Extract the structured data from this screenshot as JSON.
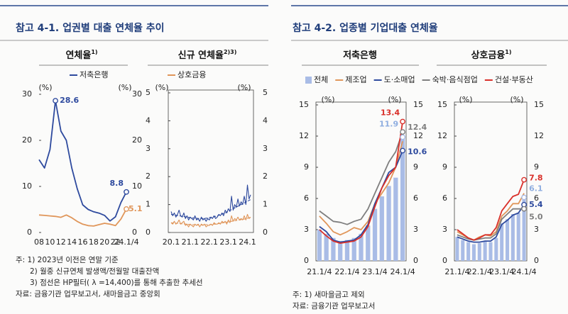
{
  "header": {
    "left_title": "참고 4-1. 업권별 대출 연체율 추이",
    "right_title": "참고 4-2. 업종별 기업대출 연체율"
  },
  "chart_data": [
    {
      "type": "line",
      "title": "연체율",
      "title_note": "1)",
      "y_unit": "(%)",
      "categories": [
        "08",
        null,
        "10",
        null,
        "12",
        null,
        "14",
        null,
        "16",
        null,
        "18",
        null,
        "20",
        null,
        "22",
        null,
        "24.1/4"
      ],
      "ylim": [
        0,
        30
      ],
      "yticks": [
        0,
        10,
        20,
        30
      ],
      "frame": false,
      "legend_series": [
        0
      ],
      "series": [
        {
          "name": "저축은행",
          "color": "#2e4a9e",
          "values": [
            15.8,
            14.0,
            18.0,
            28.6,
            22.0,
            20.0,
            14.0,
            9.5,
            6.0,
            5.0,
            4.5,
            4.2,
            3.7,
            2.5,
            3.4,
            6.5,
            8.8
          ],
          "label_points": [
            3,
            16
          ]
        },
        {
          "color": "#e0965a",
          "values": [
            3.8,
            3.7,
            3.6,
            3.5,
            3.3,
            3.8,
            3.2,
            2.4,
            1.8,
            1.5,
            1.4,
            1.7,
            2.0,
            1.8,
            1.5,
            2.9,
            5.1
          ],
          "label_points": [
            16
          ]
        }
      ]
    },
    {
      "type": "line",
      "title": "신규 연체율",
      "title_note": "2)3)",
      "y_unit": "(%)",
      "categories": [
        "20.1",
        null,
        null,
        null,
        null,
        null,
        null,
        null,
        null,
        null,
        null,
        null,
        "21.1",
        null,
        null,
        null,
        null,
        null,
        null,
        null,
        null,
        null,
        null,
        null,
        "22.1",
        null,
        null,
        null,
        null,
        null,
        null,
        null,
        null,
        null,
        null,
        null,
        "23.1",
        null,
        null,
        null,
        null,
        null,
        null,
        null,
        null,
        null,
        null,
        null,
        "24.1",
        null,
        null
      ],
      "ylim": [
        0,
        5
      ],
      "yticks": [
        0,
        1,
        2,
        3,
        4,
        5
      ],
      "frame": true,
      "legend_series": [
        1
      ],
      "series": [
        {
          "color": "#2e4a9e",
          "values": [
            0.75,
            0.6,
            0.7,
            0.55,
            0.65,
            0.8,
            0.6,
            0.55,
            0.7,
            0.5,
            0.6,
            0.45,
            0.55,
            0.5,
            0.45,
            0.6,
            0.45,
            0.5,
            0.4,
            0.55,
            0.45,
            0.5,
            0.4,
            0.5,
            0.45,
            0.55,
            0.5,
            0.6,
            0.5,
            0.55,
            0.65,
            0.6,
            0.7,
            0.6,
            0.8,
            0.7,
            0.85,
            0.75,
            1.3,
            0.8,
            1.0,
            0.9,
            1.2,
            0.95,
            1.1,
            1.0,
            1.3,
            1.0,
            1.7,
            1.2,
            1.35
          ]
        },
        {
          "name": "상호금융",
          "color": "#e0965a",
          "values": [
            0.35,
            0.3,
            0.4,
            0.3,
            0.35,
            0.45,
            0.3,
            0.35,
            0.4,
            0.25,
            0.3,
            0.2,
            0.3,
            0.25,
            0.2,
            0.3,
            0.25,
            0.3,
            0.2,
            0.3,
            0.25,
            0.3,
            0.2,
            0.25,
            0.25,
            0.3,
            0.25,
            0.35,
            0.3,
            0.3,
            0.35,
            0.3,
            0.4,
            0.35,
            0.4,
            0.3,
            0.45,
            0.35,
            0.6,
            0.4,
            0.5,
            0.45,
            0.55,
            0.45,
            0.5,
            0.45,
            0.6,
            0.45,
            0.65,
            0.5,
            0.55
          ]
        },
        {
          "color": "#2e4a9e",
          "dash": true,
          "values": [
            0.65,
            0.64,
            0.63,
            0.62,
            0.61,
            0.6,
            0.59,
            0.58,
            0.57,
            0.56,
            0.55,
            0.54,
            0.53,
            0.52,
            0.52,
            0.51,
            0.51,
            0.5,
            0.5,
            0.5,
            0.5,
            0.51,
            0.51,
            0.52,
            0.53,
            0.54,
            0.55,
            0.56,
            0.58,
            0.6,
            0.62,
            0.64,
            0.66,
            0.68,
            0.7,
            0.73,
            0.76,
            0.79,
            0.82,
            0.85,
            0.88,
            0.91,
            0.94,
            0.97,
            1.0,
            1.03,
            1.06,
            1.09,
            1.12,
            1.15,
            1.18
          ]
        },
        {
          "color": "#e0965a",
          "dash": true,
          "values": [
            0.35,
            0.34,
            0.34,
            0.33,
            0.33,
            0.32,
            0.32,
            0.31,
            0.31,
            0.3,
            0.3,
            0.29,
            0.29,
            0.28,
            0.28,
            0.28,
            0.27,
            0.27,
            0.27,
            0.27,
            0.27,
            0.27,
            0.28,
            0.28,
            0.28,
            0.29,
            0.29,
            0.3,
            0.3,
            0.31,
            0.32,
            0.33,
            0.34,
            0.35,
            0.36,
            0.37,
            0.38,
            0.39,
            0.4,
            0.41,
            0.42,
            0.43,
            0.44,
            0.45,
            0.46,
            0.47,
            0.48,
            0.5,
            0.51,
            0.53,
            0.55
          ]
        }
      ]
    },
    {
      "type": "combo",
      "title": "저축은행",
      "y_unit": "(%)",
      "categories": [
        "21.1/4",
        null,
        null,
        null,
        "22.1/4",
        null,
        null,
        null,
        "23.1/4",
        null,
        null,
        null,
        "24.1/4"
      ],
      "ylim": [
        0,
        15
      ],
      "yticks": [
        0,
        3,
        6,
        9,
        12,
        15
      ],
      "frame": true,
      "legend_series": [
        0,
        1,
        2,
        3,
        4
      ],
      "series": [
        {
          "name": "전체",
          "type": "bar",
          "color": "#a9bce6",
          "label_color": "#8faee0",
          "values": [
            3.0,
            2.6,
            2.2,
            1.9,
            2.0,
            2.2,
            2.6,
            3.4,
            5.0,
            6.2,
            7.2,
            8.0,
            11.9
          ],
          "label_points": [
            12
          ]
        },
        {
          "name": "제조업",
          "color": "#e0965a",
          "values": [
            4.3,
            3.6,
            2.8,
            2.5,
            2.8,
            3.2,
            3.0,
            3.8,
            5.5,
            6.5,
            7.5,
            9.0,
            11.5
          ]
        },
        {
          "name": "도·소매업",
          "color": "#2e4a9e",
          "values": [
            3.3,
            2.8,
            2.0,
            1.8,
            1.9,
            2.0,
            2.5,
            3.5,
            5.5,
            7.0,
            8.5,
            9.0,
            10.6
          ],
          "label_points": [
            12
          ]
        },
        {
          "name": "숙박·음식점업",
          "color": "#7f7f7f",
          "values": [
            4.8,
            4.3,
            3.8,
            3.7,
            3.5,
            3.8,
            4.0,
            5.0,
            6.5,
            8.0,
            9.5,
            10.5,
            12.4
          ],
          "label_points": [
            12
          ]
        },
        {
          "name": "건설·부동산",
          "color": "#d9302a",
          "values": [
            3.0,
            2.4,
            1.9,
            1.7,
            1.8,
            1.9,
            2.3,
            3.3,
            5.2,
            7.0,
            8.2,
            9.0,
            13.4
          ],
          "label_points": [
            12
          ]
        }
      ]
    },
    {
      "type": "combo",
      "title": "상호금융",
      "title_note": "1)",
      "y_unit": "(%)",
      "categories": [
        "21.1/4",
        null,
        null,
        null,
        "22.1/4",
        null,
        null,
        null,
        "23.1/4",
        null,
        null,
        null,
        "24.1/4"
      ],
      "ylim": [
        0,
        15
      ],
      "yticks": [
        0,
        3,
        6,
        9,
        12,
        15
      ],
      "frame": true,
      "series": [
        {
          "type": "bar",
          "color": "#a9bce6",
          "label_color": "#8faee0",
          "values": [
            2.3,
            2.0,
            1.8,
            1.6,
            1.7,
            1.9,
            1.8,
            2.2,
            3.6,
            4.0,
            4.5,
            4.6,
            6.1
          ],
          "label_points": [
            12
          ]
        },
        {
          "color": "#e0965a",
          "values": [
            2.8,
            2.5,
            2.2,
            2.0,
            2.3,
            2.5,
            2.4,
            2.8,
            4.3,
            4.8,
            5.5,
            5.5,
            6.5
          ]
        },
        {
          "color": "#2e4a9e",
          "values": [
            2.3,
            2.1,
            1.9,
            1.8,
            1.8,
            1.9,
            1.9,
            2.3,
            3.5,
            3.9,
            4.4,
            4.6,
            5.4
          ],
          "label_points": [
            12
          ]
        },
        {
          "color": "#7f7f7f",
          "values": [
            2.5,
            2.3,
            2.1,
            2.0,
            2.1,
            2.2,
            2.2,
            2.6,
            4.0,
            4.5,
            5.0,
            5.0,
            5.0
          ],
          "value_labels": [
            null,
            null,
            null,
            null,
            null,
            null,
            null,
            null,
            null,
            null,
            null,
            null,
            "5.0"
          ],
          "label_points": [
            12
          ]
        },
        {
          "color": "#d9302a",
          "values": [
            3.0,
            2.6,
            2.2,
            2.0,
            2.2,
            2.5,
            2.5,
            3.2,
            4.8,
            5.5,
            6.2,
            6.4,
            7.8
          ],
          "label_points": [
            12
          ]
        }
      ]
    }
  ],
  "notes_left": [
    "주: 1) 2023년 이전은 연말 기준",
    "2) 월중 신규연체 발생액/전월말 대출잔액",
    "3) 점선은 HP필터( λ =14,400)를 통해 추출한 추세선",
    "자료: 금융기관 업무보고서, 새마을금고 중앙회"
  ],
  "notes_right": [
    "주: 1) 새마을금고 제외",
    "자료: 금융기관 업무보고서"
  ]
}
